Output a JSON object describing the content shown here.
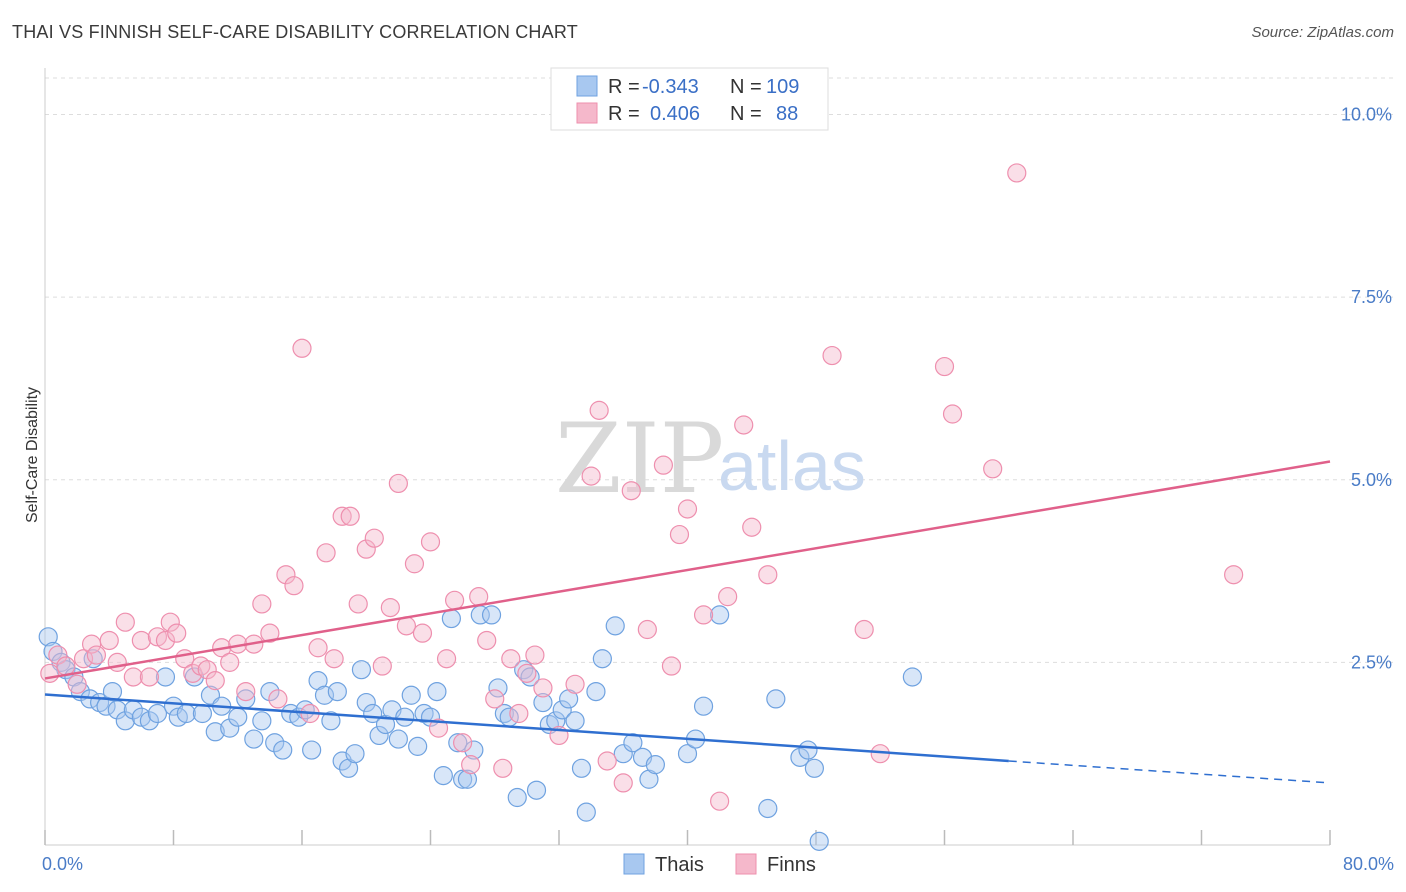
{
  "header": {
    "title": "THAI VS FINNISH SELF-CARE DISABILITY CORRELATION CHART",
    "source": "Source: ZipAtlas.com"
  },
  "watermark": {
    "zip": "ZIP",
    "atlas": "atlas"
  },
  "legend": {
    "rows": [
      {
        "r_label": "R =",
        "r_value": "-0.343",
        "n_label": "N =",
        "n_value": "109",
        "color": "#a8c8f0"
      },
      {
        "r_label": "R =",
        "r_value": "0.406",
        "n_label": "N =",
        "n_value": "88",
        "color": "#f5b8cb"
      }
    ]
  },
  "bottom_legend": [
    {
      "label": "Thais",
      "color": "#a8c8f0"
    },
    {
      "label": "Finns",
      "color": "#f5b8cb"
    }
  ],
  "chart_data": {
    "type": "scatter",
    "ylabel": "Self-Care Disability",
    "xlim": [
      0,
      80
    ],
    "ylim": [
      0,
      10.5
    ],
    "x_tick_labels": [
      {
        "value": 0,
        "label": "0.0%"
      },
      {
        "value": 80,
        "label": "80.0%"
      }
    ],
    "y_tick_labels": [
      {
        "value": 2.5,
        "label": "2.5%"
      },
      {
        "value": 5.0,
        "label": "5.0%"
      },
      {
        "value": 7.5,
        "label": "7.5%"
      },
      {
        "value": 10.0,
        "label": "10.0%"
      }
    ],
    "grid": true,
    "series": [
      {
        "name": "Thais",
        "color": "#6fa2e0",
        "fill": "#a8c8f0",
        "trend": {
          "x0": 0,
          "y0": 2.06,
          "x1": 60,
          "y1": 1.15,
          "dash_to_x": 80,
          "dash_to_y": 0.85,
          "color": "#2f6fd0"
        },
        "points": [
          [
            0.2,
            2.85
          ],
          [
            0.5,
            2.65
          ],
          [
            1.0,
            2.5
          ],
          [
            1.3,
            2.4
          ],
          [
            1.8,
            2.3
          ],
          [
            2.2,
            2.1
          ],
          [
            2.8,
            2.0
          ],
          [
            3.0,
            2.55
          ],
          [
            3.4,
            1.95
          ],
          [
            3.8,
            1.9
          ],
          [
            4.2,
            2.1
          ],
          [
            4.5,
            1.85
          ],
          [
            5.0,
            1.7
          ],
          [
            5.5,
            1.85
          ],
          [
            6.0,
            1.75
          ],
          [
            6.5,
            1.7
          ],
          [
            7.0,
            1.8
          ],
          [
            7.5,
            2.3
          ],
          [
            8.0,
            1.9
          ],
          [
            8.3,
            1.75
          ],
          [
            8.8,
            1.8
          ],
          [
            9.3,
            2.3
          ],
          [
            9.8,
            1.8
          ],
          [
            10.3,
            2.05
          ],
          [
            10.6,
            1.55
          ],
          [
            11.0,
            1.9
          ],
          [
            11.5,
            1.6
          ],
          [
            12.0,
            1.75
          ],
          [
            12.5,
            2.0
          ],
          [
            13.0,
            1.45
          ],
          [
            13.5,
            1.7
          ],
          [
            14.0,
            2.1
          ],
          [
            14.3,
            1.4
          ],
          [
            14.8,
            1.3
          ],
          [
            15.3,
            1.8
          ],
          [
            15.8,
            1.75
          ],
          [
            16.2,
            1.85
          ],
          [
            16.6,
            1.3
          ],
          [
            17.0,
            2.25
          ],
          [
            17.4,
            2.05
          ],
          [
            17.8,
            1.7
          ],
          [
            18.2,
            2.1
          ],
          [
            18.5,
            1.15
          ],
          [
            18.9,
            1.05
          ],
          [
            19.3,
            1.25
          ],
          [
            19.7,
            2.4
          ],
          [
            20.0,
            1.95
          ],
          [
            20.4,
            1.8
          ],
          [
            20.8,
            1.5
          ],
          [
            21.2,
            1.65
          ],
          [
            21.6,
            1.85
          ],
          [
            22.0,
            1.45
          ],
          [
            22.4,
            1.75
          ],
          [
            22.8,
            2.05
          ],
          [
            23.2,
            1.35
          ],
          [
            23.6,
            1.8
          ],
          [
            24.0,
            1.75
          ],
          [
            24.4,
            2.1
          ],
          [
            24.8,
            0.95
          ],
          [
            25.3,
            3.1
          ],
          [
            25.7,
            1.4
          ],
          [
            26.0,
            0.9
          ],
          [
            26.3,
            0.9
          ],
          [
            26.7,
            1.3
          ],
          [
            27.1,
            3.15
          ],
          [
            27.8,
            3.15
          ],
          [
            28.2,
            2.15
          ],
          [
            28.6,
            1.8
          ],
          [
            28.9,
            1.75
          ],
          [
            29.4,
            0.65
          ],
          [
            29.8,
            2.4
          ],
          [
            30.2,
            2.3
          ],
          [
            30.6,
            0.75
          ],
          [
            31.0,
            1.95
          ],
          [
            31.4,
            1.65
          ],
          [
            31.8,
            1.7
          ],
          [
            32.2,
            1.85
          ],
          [
            32.6,
            2.0
          ],
          [
            33.0,
            1.7
          ],
          [
            33.4,
            1.05
          ],
          [
            33.7,
            0.45
          ],
          [
            34.3,
            2.1
          ],
          [
            34.7,
            2.55
          ],
          [
            35.5,
            3.0
          ],
          [
            36.0,
            1.25
          ],
          [
            36.6,
            1.4
          ],
          [
            37.2,
            1.2
          ],
          [
            37.6,
            0.9
          ],
          [
            38.0,
            1.1
          ],
          [
            40.0,
            1.25
          ],
          [
            40.5,
            1.45
          ],
          [
            41.0,
            1.9
          ],
          [
            42.0,
            3.15
          ],
          [
            45.0,
            0.5
          ],
          [
            45.5,
            2.0
          ],
          [
            47.0,
            1.2
          ],
          [
            47.5,
            1.3
          ],
          [
            47.9,
            1.05
          ],
          [
            48.2,
            0.05
          ],
          [
            54.0,
            2.3
          ]
        ]
      },
      {
        "name": "Finns",
        "color": "#ee8fae",
        "fill": "#f5b8cb",
        "trend": {
          "x0": 0,
          "y0": 2.28,
          "x1": 80,
          "y1": 5.25,
          "color": "#e0608a"
        },
        "points": [
          [
            0.3,
            2.35
          ],
          [
            0.8,
            2.6
          ],
          [
            1.3,
            2.45
          ],
          [
            2.0,
            2.2
          ],
          [
            2.4,
            2.55
          ],
          [
            2.9,
            2.75
          ],
          [
            3.2,
            2.6
          ],
          [
            4.0,
            2.8
          ],
          [
            4.5,
            2.5
          ],
          [
            5.0,
            3.05
          ],
          [
            5.5,
            2.3
          ],
          [
            6.0,
            2.8
          ],
          [
            6.5,
            2.3
          ],
          [
            7.0,
            2.85
          ],
          [
            7.5,
            2.8
          ],
          [
            7.8,
            3.05
          ],
          [
            8.2,
            2.9
          ],
          [
            8.7,
            2.55
          ],
          [
            9.2,
            2.35
          ],
          [
            9.7,
            2.45
          ],
          [
            10.1,
            2.4
          ],
          [
            10.6,
            2.25
          ],
          [
            11.0,
            2.7
          ],
          [
            11.5,
            2.5
          ],
          [
            12.0,
            2.75
          ],
          [
            12.5,
            2.1
          ],
          [
            13.0,
            2.75
          ],
          [
            13.5,
            3.3
          ],
          [
            14.0,
            2.9
          ],
          [
            14.5,
            2.0
          ],
          [
            15.0,
            3.7
          ],
          [
            15.5,
            3.55
          ],
          [
            16.0,
            6.8
          ],
          [
            16.5,
            1.8
          ],
          [
            17.0,
            2.7
          ],
          [
            17.5,
            4.0
          ],
          [
            18.0,
            2.55
          ],
          [
            18.5,
            4.5
          ],
          [
            19.0,
            4.5
          ],
          [
            19.5,
            3.3
          ],
          [
            20.0,
            4.05
          ],
          [
            20.5,
            4.2
          ],
          [
            21.0,
            2.45
          ],
          [
            21.5,
            3.25
          ],
          [
            22.0,
            4.95
          ],
          [
            22.5,
            3.0
          ],
          [
            23.0,
            3.85
          ],
          [
            23.5,
            2.9
          ],
          [
            24.0,
            4.15
          ],
          [
            24.5,
            1.6
          ],
          [
            25.0,
            2.55
          ],
          [
            25.5,
            3.35
          ],
          [
            26.0,
            1.4
          ],
          [
            26.5,
            1.1
          ],
          [
            27.0,
            3.4
          ],
          [
            27.5,
            2.8
          ],
          [
            28.0,
            2.0
          ],
          [
            28.5,
            1.05
          ],
          [
            29.0,
            2.55
          ],
          [
            29.5,
            1.8
          ],
          [
            30.0,
            2.35
          ],
          [
            30.5,
            2.6
          ],
          [
            31.0,
            2.15
          ],
          [
            32.0,
            1.5
          ],
          [
            33.0,
            2.2
          ],
          [
            34.0,
            5.05
          ],
          [
            34.5,
            5.95
          ],
          [
            35.0,
            1.15
          ],
          [
            36.0,
            0.85
          ],
          [
            36.5,
            4.85
          ],
          [
            37.5,
            2.95
          ],
          [
            38.5,
            5.2
          ],
          [
            39.0,
            2.45
          ],
          [
            39.5,
            4.25
          ],
          [
            40.0,
            4.6
          ],
          [
            41.0,
            3.15
          ],
          [
            42.0,
            0.6
          ],
          [
            42.5,
            3.4
          ],
          [
            43.5,
            5.75
          ],
          [
            44.0,
            4.35
          ],
          [
            45.0,
            3.7
          ],
          [
            49.0,
            6.7
          ],
          [
            51.0,
            2.95
          ],
          [
            52.0,
            1.25
          ],
          [
            56.0,
            6.55
          ],
          [
            56.5,
            5.9
          ],
          [
            59.0,
            5.15
          ],
          [
            60.5,
            9.2
          ],
          [
            74.0,
            3.7
          ]
        ]
      }
    ]
  }
}
